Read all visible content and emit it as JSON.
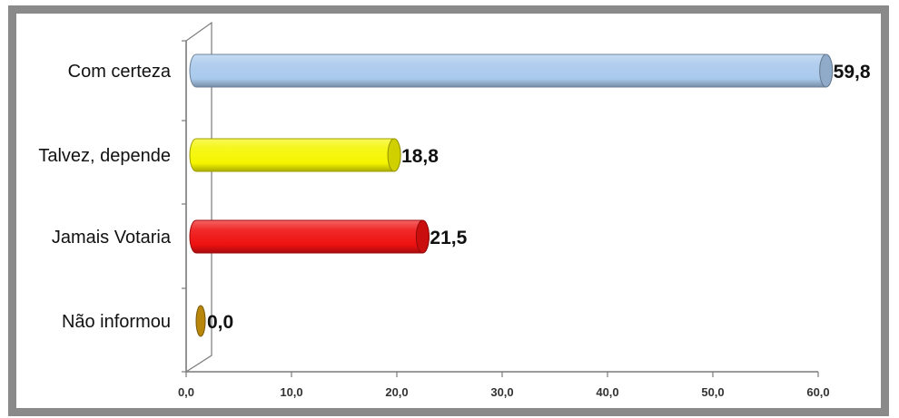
{
  "chart_data": {
    "type": "bar",
    "orientation": "horizontal",
    "categories": [
      "Com certeza",
      "Talvez, depende",
      "Jamais Votaria",
      "Não informou"
    ],
    "values": [
      59.8,
      18.8,
      21.5,
      0.0
    ],
    "value_labels": [
      "59,8",
      "18,8",
      "21,5",
      "0,0"
    ],
    "xlim": [
      0,
      60
    ],
    "x_ticks": [
      0,
      10,
      20,
      30,
      40,
      50,
      60
    ],
    "x_tick_labels": [
      "0,0",
      "10,0",
      "20,0",
      "30,0",
      "40,0",
      "50,0",
      "60,0"
    ],
    "colors": [
      "#a9c9ec",
      "#f5f500",
      "#ee1111",
      "#b8860b"
    ],
    "grid": false,
    "legend": "none"
  }
}
